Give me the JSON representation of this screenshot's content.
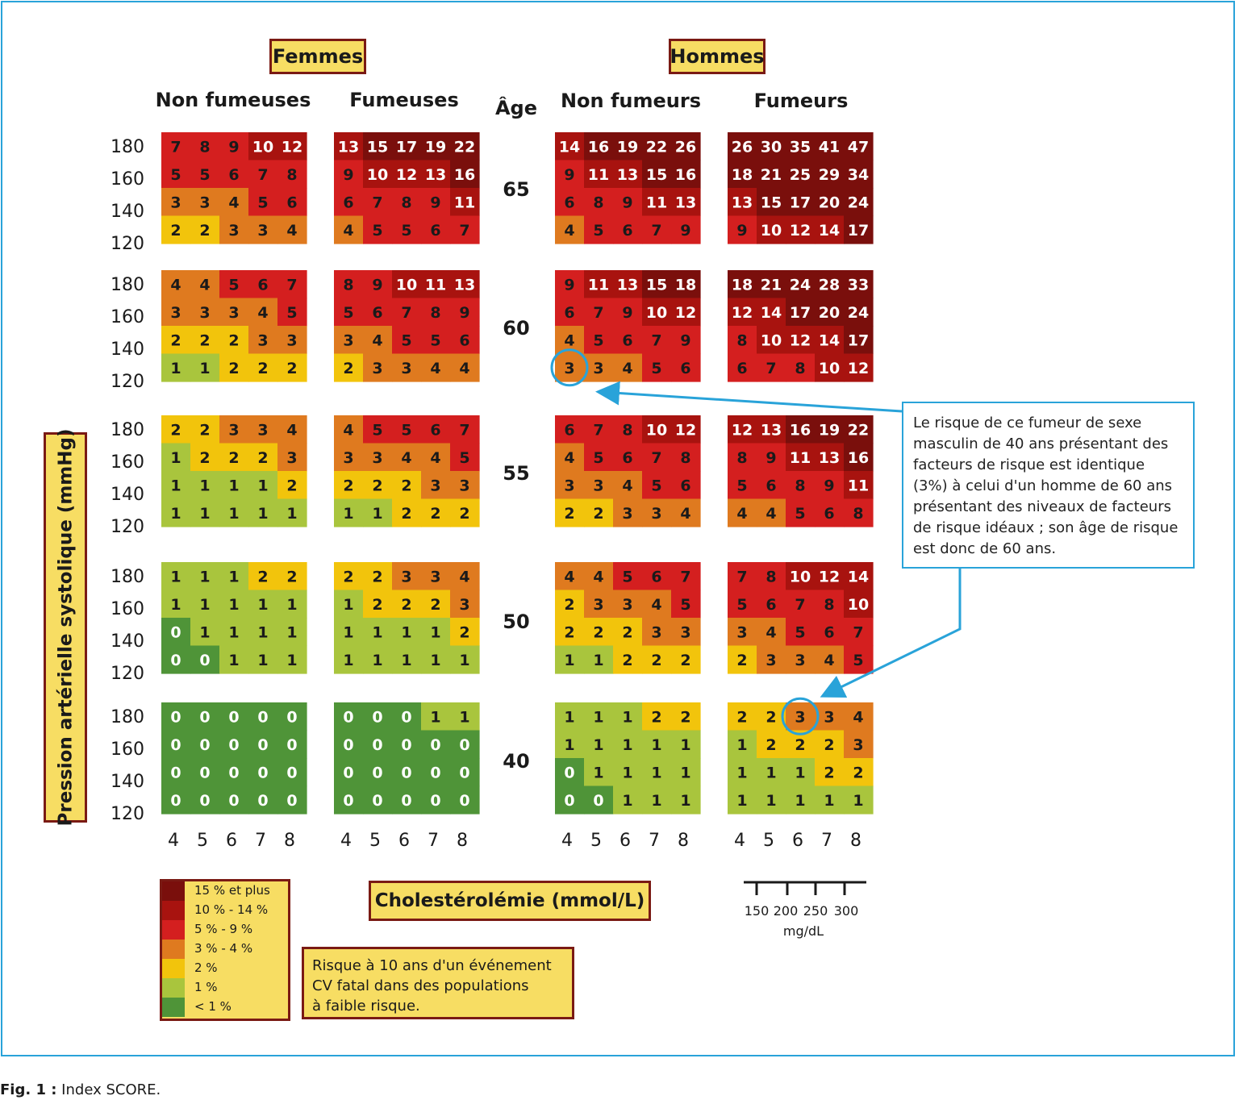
{
  "headers": {
    "women": "Femmes",
    "men": "Hommes",
    "age_label": "Âge",
    "groups": [
      "Non fumeuses",
      "Fumeuses",
      "Non fumeurs",
      "Fumeurs"
    ]
  },
  "y_axis_title": "Pression artérielle systolique (mmHg)",
  "x_axis_title": "Cholestérolémie (mmol/L)",
  "legend": [
    {
      "label": "15 % et plus",
      "color": "#7a0f0c"
    },
    {
      "label": "10 % - 14 %",
      "color": "#a8130f"
    },
    {
      "label": "5 % - 9 %",
      "color": "#d41f1f"
    },
    {
      "label": "3 % - 4 %",
      "color": "#df7a1f"
    },
    {
      "label": "2 %",
      "color": "#f2c40c"
    },
    {
      "label": "1 %",
      "color": "#a9c53d"
    },
    {
      "label": "< 1 %",
      "color": "#4f9438"
    }
  ],
  "note_lines": [
    "Risque à 10 ans d'un événement",
    "CV fatal dans des populations",
    "à faible risque."
  ],
  "callout": "Le risque de ce fumeur de sexe masculin de 40 ans présentant des facteurs de risque est identique (3%) à celui d'un homme de 60 ans présentant des niveaux de facteurs de risque idéaux ; son âge de risque est donc de 60 ans.",
  "mgdl_scale": {
    "ticks": [
      "150",
      "200",
      "250",
      "300"
    ],
    "unit": "mg/dL"
  },
  "caption": {
    "prefix": "Fig. 1 :",
    "text": " Index SCORE."
  },
  "chart_data": {
    "type": "heatmap",
    "title": "",
    "xlabel": "Cholestérolémie (mmol/L)",
    "ylabel": "Pression artérielle systolique (mmHg)",
    "x_ticks": [
      4,
      5,
      6,
      7,
      8
    ],
    "y_ticks": [
      180,
      160,
      140,
      120
    ],
    "ages": [
      65,
      60,
      55,
      50,
      40
    ],
    "groups": [
      "Non fumeuses",
      "Fumeuses",
      "Non fumeurs",
      "Fumeurs"
    ],
    "values": {
      "65": [
        [
          [
            7,
            8,
            9,
            10,
            12
          ],
          [
            5,
            5,
            6,
            7,
            8
          ],
          [
            3,
            3,
            4,
            5,
            6
          ],
          [
            2,
            2,
            3,
            3,
            4
          ]
        ],
        [
          [
            13,
            15,
            17,
            19,
            22
          ],
          [
            9,
            10,
            12,
            13,
            16
          ],
          [
            6,
            7,
            8,
            9,
            11
          ],
          [
            4,
            5,
            5,
            6,
            7
          ]
        ],
        [
          [
            14,
            16,
            19,
            22,
            26
          ],
          [
            9,
            11,
            13,
            15,
            16
          ],
          [
            6,
            8,
            9,
            11,
            13
          ],
          [
            4,
            5,
            6,
            7,
            9
          ]
        ],
        [
          [
            26,
            30,
            35,
            41,
            47
          ],
          [
            18,
            21,
            25,
            29,
            34
          ],
          [
            13,
            15,
            17,
            20,
            24
          ],
          [
            9,
            10,
            12,
            14,
            17
          ]
        ]
      ],
      "60": [
        [
          [
            4,
            4,
            5,
            6,
            7
          ],
          [
            3,
            3,
            3,
            4,
            5
          ],
          [
            2,
            2,
            2,
            3,
            3
          ],
          [
            1,
            1,
            2,
            2,
            2
          ]
        ],
        [
          [
            8,
            9,
            10,
            11,
            13
          ],
          [
            5,
            6,
            7,
            8,
            9
          ],
          [
            3,
            4,
            5,
            5,
            6
          ],
          [
            2,
            3,
            3,
            4,
            4
          ]
        ],
        [
          [
            9,
            11,
            13,
            15,
            18
          ],
          [
            6,
            7,
            9,
            10,
            12
          ],
          [
            4,
            5,
            6,
            7,
            9
          ],
          [
            3,
            3,
            4,
            5,
            6
          ]
        ],
        [
          [
            18,
            21,
            24,
            28,
            33
          ],
          [
            12,
            14,
            17,
            20,
            24
          ],
          [
            8,
            10,
            12,
            14,
            17
          ],
          [
            6,
            7,
            8,
            10,
            12
          ]
        ]
      ],
      "55": [
        [
          [
            2,
            2,
            3,
            3,
            4
          ],
          [
            1,
            2,
            2,
            2,
            3
          ],
          [
            1,
            1,
            1,
            1,
            2
          ],
          [
            1,
            1,
            1,
            1,
            1
          ]
        ],
        [
          [
            4,
            5,
            5,
            6,
            7
          ],
          [
            3,
            3,
            4,
            4,
            5
          ],
          [
            2,
            2,
            2,
            3,
            3
          ],
          [
            1,
            1,
            2,
            2,
            2
          ]
        ],
        [
          [
            6,
            7,
            8,
            10,
            12
          ],
          [
            4,
            5,
            6,
            7,
            8
          ],
          [
            3,
            3,
            4,
            5,
            6
          ],
          [
            2,
            2,
            3,
            3,
            4
          ]
        ],
        [
          [
            12,
            13,
            16,
            19,
            22
          ],
          [
            8,
            9,
            11,
            13,
            16
          ],
          [
            5,
            6,
            8,
            9,
            11
          ],
          [
            4,
            4,
            5,
            6,
            8
          ]
        ]
      ],
      "50": [
        [
          [
            1,
            1,
            1,
            2,
            2
          ],
          [
            1,
            1,
            1,
            1,
            1
          ],
          [
            0,
            1,
            1,
            1,
            1
          ],
          [
            0,
            0,
            1,
            1,
            1
          ]
        ],
        [
          [
            2,
            2,
            3,
            3,
            4
          ],
          [
            1,
            2,
            2,
            2,
            3
          ],
          [
            1,
            1,
            1,
            1,
            2
          ],
          [
            1,
            1,
            1,
            1,
            1
          ]
        ],
        [
          [
            4,
            4,
            5,
            6,
            7
          ],
          [
            2,
            3,
            3,
            4,
            5
          ],
          [
            2,
            2,
            2,
            3,
            3
          ],
          [
            1,
            1,
            2,
            2,
            2
          ]
        ],
        [
          [
            7,
            8,
            10,
            12,
            14
          ],
          [
            5,
            6,
            7,
            8,
            10
          ],
          [
            3,
            4,
            5,
            6,
            7
          ],
          [
            2,
            3,
            3,
            4,
            5
          ]
        ]
      ],
      "40": [
        [
          [
            0,
            0,
            0,
            0,
            0
          ],
          [
            0,
            0,
            0,
            0,
            0
          ],
          [
            0,
            0,
            0,
            0,
            0
          ],
          [
            0,
            0,
            0,
            0,
            0
          ]
        ],
        [
          [
            0,
            0,
            0,
            1,
            1
          ],
          [
            0,
            0,
            0,
            0,
            0
          ],
          [
            0,
            0,
            0,
            0,
            0
          ],
          [
            0,
            0,
            0,
            0,
            0
          ]
        ],
        [
          [
            1,
            1,
            1,
            2,
            2
          ],
          [
            1,
            1,
            1,
            1,
            1
          ],
          [
            0,
            1,
            1,
            1,
            1
          ],
          [
            0,
            0,
            1,
            1,
            1
          ]
        ],
        [
          [
            2,
            2,
            3,
            3,
            4
          ],
          [
            1,
            2,
            2,
            2,
            3
          ],
          [
            1,
            1,
            1,
            2,
            2
          ],
          [
            1,
            1,
            1,
            1,
            1
          ]
        ]
      ]
    },
    "highlighted_cells": [
      {
        "age": 60,
        "group": "Non fumeurs",
        "sbp": 120,
        "cholesterol": 4,
        "value": 3
      },
      {
        "age": 40,
        "group": "Fumeurs",
        "sbp": 180,
        "cholesterol": 6,
        "value": 3
      }
    ]
  }
}
